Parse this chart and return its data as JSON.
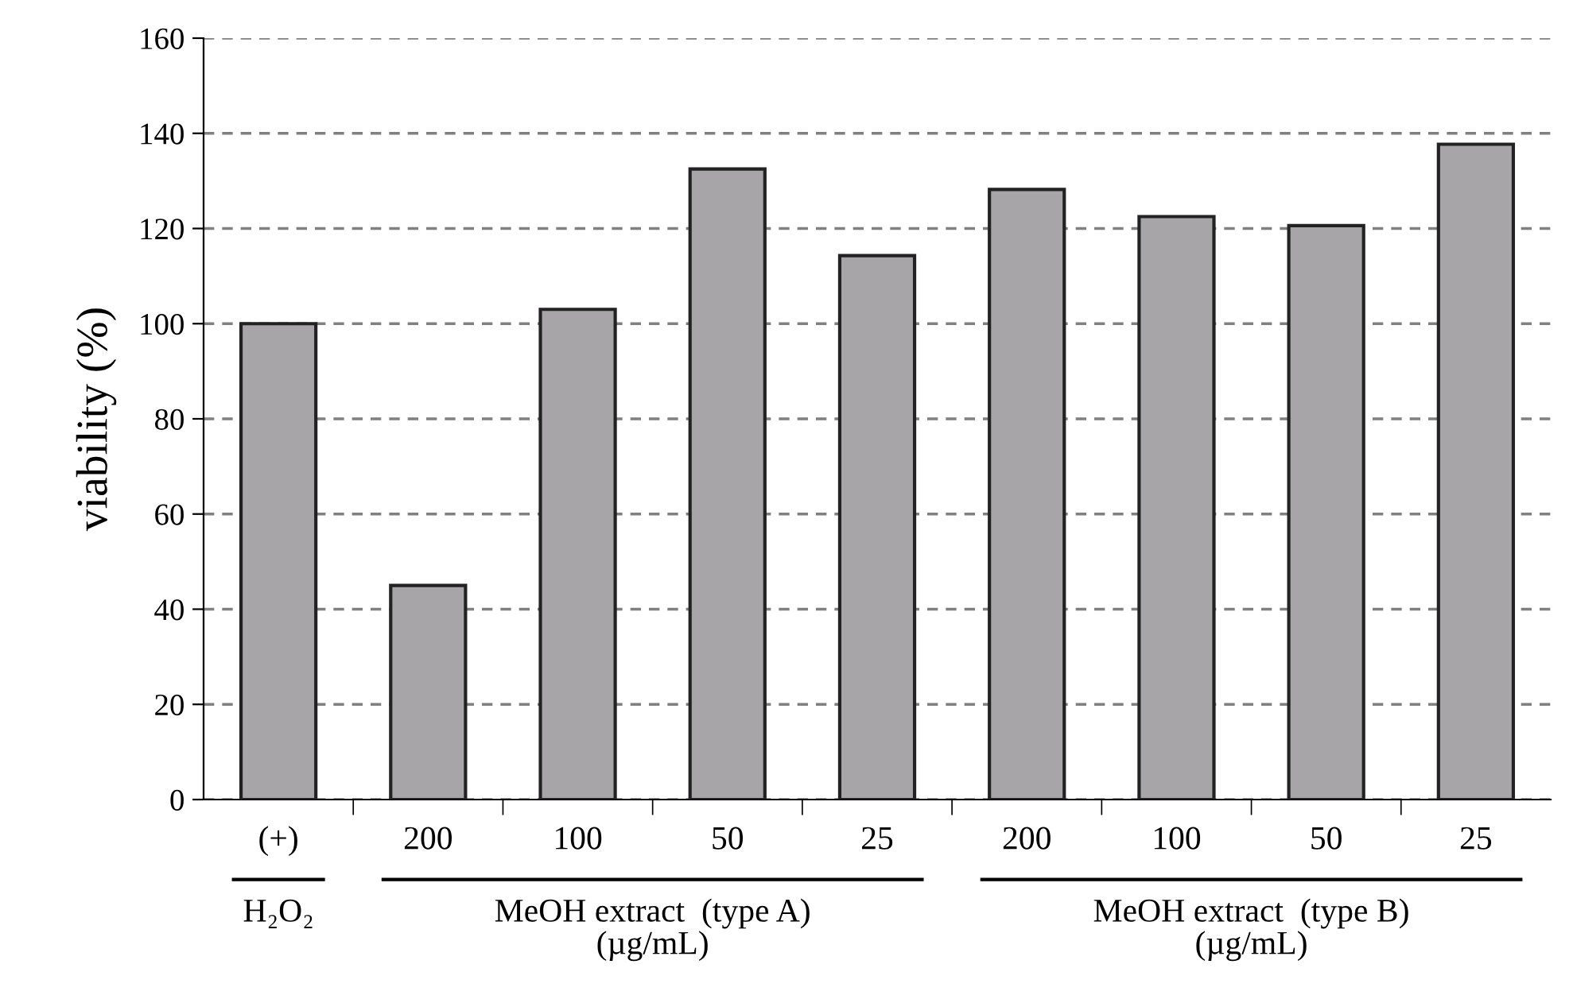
{
  "chart_data": {
    "type": "bar",
    "ylabel": "viability (%)",
    "categories": [
      "(+)",
      "200",
      "100",
      "50",
      "25",
      "200",
      "100",
      "50",
      "25"
    ],
    "values": [
      100,
      45,
      103,
      132.5,
      114.3,
      128.2,
      122.5,
      120.6,
      137.7
    ],
    "color": "#a7a5a8",
    "ylim": [
      0,
      160
    ],
    "yticks": [
      0,
      20,
      40,
      60,
      80,
      100,
      120,
      140,
      160
    ],
    "grid": "y",
    "annotations": [
      "H₂O₂",
      "MeOH extract  (type A)\n(µg/mL)",
      "MeOH extract  (type B)\n(µg/mL)"
    ]
  }
}
